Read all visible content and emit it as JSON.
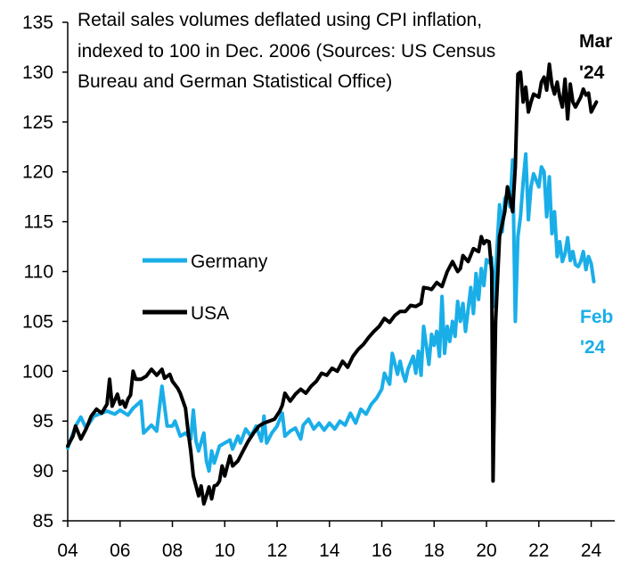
{
  "chart_data": {
    "type": "line",
    "title_lines": [
      "Retail sales volumes deflated using CPI inflation,",
      "indexed to 100 in Dec. 2006 (Sources: US Census",
      "Bureau and German Statistical Office)"
    ],
    "xlabel": "",
    "ylabel": "",
    "xlim": [
      2004,
      2024.9
    ],
    "ylim": [
      85,
      135
    ],
    "x_ticks": [
      2004,
      2006,
      2008,
      2010,
      2012,
      2014,
      2016,
      2018,
      2020,
      2022,
      2024
    ],
    "x_tick_labels": [
      "04",
      "06",
      "08",
      "10",
      "12",
      "14",
      "16",
      "18",
      "20",
      "22",
      "24"
    ],
    "y_ticks": [
      85,
      90,
      95,
      100,
      105,
      110,
      115,
      120,
      125,
      130,
      135
    ],
    "y_tick_labels": [
      "85",
      "90",
      "95",
      "100",
      "105",
      "110",
      "115",
      "120",
      "125",
      "130",
      "135"
    ],
    "grid": false,
    "legend_position": "center-left",
    "series": [
      {
        "name": "Germany",
        "color": "#1aaee8",
        "end_label": [
          "Feb",
          "'24"
        ],
        "points": [
          [
            2004.0,
            92.3
          ],
          [
            2004.3,
            94.5
          ],
          [
            2004.5,
            95.4
          ],
          [
            2004.7,
            94.3
          ],
          [
            2005.0,
            95.5
          ],
          [
            2005.3,
            95.8
          ],
          [
            2005.5,
            96.0
          ],
          [
            2005.8,
            95.7
          ],
          [
            2006.0,
            96.1
          ],
          [
            2006.3,
            95.6
          ],
          [
            2006.5,
            96.3
          ],
          [
            2006.8,
            97.0
          ],
          [
            2006.9,
            93.8
          ],
          [
            2007.2,
            94.6
          ],
          [
            2007.4,
            94.0
          ],
          [
            2007.6,
            98.5
          ],
          [
            2007.8,
            94.5
          ],
          [
            2008.0,
            94.5
          ],
          [
            2008.1,
            95.0
          ],
          [
            2008.3,
            93.5
          ],
          [
            2008.5,
            93.8
          ],
          [
            2008.7,
            93.2
          ],
          [
            2008.8,
            96.1
          ],
          [
            2008.9,
            93.0
          ],
          [
            2009.0,
            92.0
          ],
          [
            2009.2,
            93.8
          ],
          [
            2009.3,
            91.0
          ],
          [
            2009.4,
            90.0
          ],
          [
            2009.5,
            92.0
          ],
          [
            2009.6,
            90.8
          ],
          [
            2009.8,
            92.5
          ],
          [
            2010.0,
            92.8
          ],
          [
            2010.2,
            93.1
          ],
          [
            2010.3,
            92.2
          ],
          [
            2010.5,
            93.5
          ],
          [
            2010.6,
            92.8
          ],
          [
            2010.8,
            94.2
          ],
          [
            2011.0,
            93.5
          ],
          [
            2011.2,
            94.5
          ],
          [
            2011.4,
            93.0
          ],
          [
            2011.5,
            95.5
          ],
          [
            2011.6,
            92.8
          ],
          [
            2011.8,
            93.8
          ],
          [
            2012.0,
            94.5
          ],
          [
            2012.2,
            95.8
          ],
          [
            2012.3,
            93.5
          ],
          [
            2012.5,
            94.0
          ],
          [
            2012.7,
            94.3
          ],
          [
            2012.9,
            93.2
          ],
          [
            2013.0,
            94.6
          ],
          [
            2013.2,
            95.2
          ],
          [
            2013.4,
            94.2
          ],
          [
            2013.6,
            94.8
          ],
          [
            2013.8,
            94.1
          ],
          [
            2014.0,
            94.8
          ],
          [
            2014.2,
            94.2
          ],
          [
            2014.4,
            95.0
          ],
          [
            2014.6,
            94.6
          ],
          [
            2014.8,
            95.8
          ],
          [
            2015.0,
            94.8
          ],
          [
            2015.2,
            96.2
          ],
          [
            2015.4,
            95.7
          ],
          [
            2015.6,
            96.7
          ],
          [
            2015.8,
            97.3
          ],
          [
            2016.0,
            98.2
          ],
          [
            2016.1,
            99.8
          ],
          [
            2016.3,
            98.7
          ],
          [
            2016.4,
            101.8
          ],
          [
            2016.6,
            99.7
          ],
          [
            2016.7,
            101.0
          ],
          [
            2016.8,
            99.8
          ],
          [
            2016.9,
            99.0
          ],
          [
            2017.0,
            100.2
          ],
          [
            2017.2,
            101.5
          ],
          [
            2017.3,
            99.8
          ],
          [
            2017.4,
            102.0
          ],
          [
            2017.5,
            99.6
          ],
          [
            2017.6,
            104.5
          ],
          [
            2017.8,
            100.7
          ],
          [
            2017.9,
            103.7
          ],
          [
            2018.0,
            102.6
          ],
          [
            2018.1,
            104.0
          ],
          [
            2018.2,
            101.5
          ],
          [
            2018.3,
            107.5
          ],
          [
            2018.4,
            101.8
          ],
          [
            2018.5,
            104.5
          ],
          [
            2018.6,
            103.0
          ],
          [
            2018.7,
            105.0
          ],
          [
            2018.8,
            103.5
          ],
          [
            2018.9,
            107.0
          ],
          [
            2019.0,
            105.0
          ],
          [
            2019.1,
            106.8
          ],
          [
            2019.2,
            104.0
          ],
          [
            2019.4,
            108.4
          ],
          [
            2019.5,
            105.8
          ],
          [
            2019.6,
            109.8
          ],
          [
            2019.7,
            107.2
          ],
          [
            2019.8,
            110.3
          ],
          [
            2019.9,
            108.6
          ],
          [
            2020.0,
            111.2
          ],
          [
            2020.1,
            110.9
          ],
          [
            2020.2,
            111.4
          ],
          [
            2020.3,
            106.5
          ],
          [
            2020.4,
            112.3
          ],
          [
            2020.5,
            116.7
          ],
          [
            2020.6,
            114.0
          ],
          [
            2020.7,
            117.3
          ],
          [
            2020.8,
            117.8
          ],
          [
            2020.9,
            116.5
          ],
          [
            2021.0,
            121.2
          ],
          [
            2021.1,
            105.0
          ],
          [
            2021.2,
            113.5
          ],
          [
            2021.3,
            115.5
          ],
          [
            2021.4,
            119.0
          ],
          [
            2021.5,
            121.8
          ],
          [
            2021.6,
            115.2
          ],
          [
            2021.7,
            118.5
          ],
          [
            2021.8,
            119.8
          ],
          [
            2022.0,
            118.5
          ],
          [
            2022.1,
            120.5
          ],
          [
            2022.2,
            120.0
          ],
          [
            2022.3,
            115.5
          ],
          [
            2022.4,
            119.5
          ],
          [
            2022.5,
            113.8
          ],
          [
            2022.6,
            116.0
          ],
          [
            2022.7,
            111.5
          ],
          [
            2022.8,
            113.0
          ],
          [
            2022.9,
            111.0
          ],
          [
            2023.0,
            111.8
          ],
          [
            2023.1,
            113.4
          ],
          [
            2023.2,
            111.1
          ],
          [
            2023.3,
            112.0
          ],
          [
            2023.4,
            110.7
          ],
          [
            2023.5,
            110.5
          ],
          [
            2023.6,
            111.0
          ],
          [
            2023.7,
            112.0
          ],
          [
            2023.8,
            110.2
          ],
          [
            2023.9,
            111.5
          ],
          [
            2024.0,
            110.8
          ],
          [
            2024.1,
            109.0
          ]
        ]
      },
      {
        "name": "USA",
        "color": "#000000",
        "end_label": [
          "Mar",
          "'24"
        ],
        "points": [
          [
            2004.0,
            92.5
          ],
          [
            2004.2,
            93.5
          ],
          [
            2004.3,
            94.5
          ],
          [
            2004.5,
            93.2
          ],
          [
            2004.7,
            94.2
          ],
          [
            2004.9,
            95.5
          ],
          [
            2005.1,
            96.2
          ],
          [
            2005.3,
            95.8
          ],
          [
            2005.5,
            96.7
          ],
          [
            2005.6,
            99.2
          ],
          [
            2005.7,
            96.5
          ],
          [
            2005.9,
            97.7
          ],
          [
            2006.0,
            96.7
          ],
          [
            2006.1,
            97.0
          ],
          [
            2006.2,
            96.4
          ],
          [
            2006.3,
            97.2
          ],
          [
            2006.4,
            97.6
          ],
          [
            2006.5,
            100.0
          ],
          [
            2006.6,
            99.2
          ],
          [
            2006.8,
            99.2
          ],
          [
            2007.0,
            99.5
          ],
          [
            2007.2,
            100.2
          ],
          [
            2007.4,
            99.6
          ],
          [
            2007.6,
            100.2
          ],
          [
            2007.7,
            99.3
          ],
          [
            2007.9,
            99.7
          ],
          [
            2008.0,
            99.0
          ],
          [
            2008.2,
            98.3
          ],
          [
            2008.3,
            97.8
          ],
          [
            2008.5,
            96.3
          ],
          [
            2008.6,
            94.0
          ],
          [
            2008.7,
            92.0
          ],
          [
            2008.8,
            89.5
          ],
          [
            2008.9,
            88.5
          ],
          [
            2009.0,
            87.5
          ],
          [
            2009.1,
            88.5
          ],
          [
            2009.2,
            86.7
          ],
          [
            2009.3,
            87.5
          ],
          [
            2009.4,
            88.4
          ],
          [
            2009.5,
            87.2
          ],
          [
            2009.6,
            88.5
          ],
          [
            2009.7,
            88.6
          ],
          [
            2009.8,
            89.0
          ],
          [
            2009.9,
            90.5
          ],
          [
            2010.0,
            89.5
          ],
          [
            2010.2,
            91.5
          ],
          [
            2010.3,
            90.5
          ],
          [
            2010.5,
            91.0
          ],
          [
            2010.7,
            92.0
          ],
          [
            2010.9,
            93.0
          ],
          [
            2011.1,
            93.8
          ],
          [
            2011.3,
            94.5
          ],
          [
            2011.5,
            94.8
          ],
          [
            2011.7,
            95.0
          ],
          [
            2011.9,
            95.2
          ],
          [
            2012.1,
            96.0
          ],
          [
            2012.2,
            96.6
          ],
          [
            2012.3,
            97.8
          ],
          [
            2012.5,
            97.0
          ],
          [
            2012.7,
            97.7
          ],
          [
            2012.9,
            98.2
          ],
          [
            2013.1,
            97.8
          ],
          [
            2013.3,
            98.5
          ],
          [
            2013.5,
            99.0
          ],
          [
            2013.7,
            99.8
          ],
          [
            2013.9,
            99.6
          ],
          [
            2014.1,
            100.3
          ],
          [
            2014.3,
            100.0
          ],
          [
            2014.5,
            101.0
          ],
          [
            2014.7,
            100.4
          ],
          [
            2014.9,
            101.5
          ],
          [
            2015.1,
            102.2
          ],
          [
            2015.3,
            102.7
          ],
          [
            2015.5,
            103.4
          ],
          [
            2015.7,
            104.0
          ],
          [
            2015.9,
            104.5
          ],
          [
            2016.1,
            105.3
          ],
          [
            2016.3,
            104.9
          ],
          [
            2016.5,
            105.6
          ],
          [
            2016.7,
            106.0
          ],
          [
            2016.9,
            106.0
          ],
          [
            2017.1,
            106.6
          ],
          [
            2017.3,
            106.5
          ],
          [
            2017.5,
            106.8
          ],
          [
            2017.6,
            108.4
          ],
          [
            2017.8,
            108.3
          ],
          [
            2017.9,
            108.2
          ],
          [
            2018.1,
            108.9
          ],
          [
            2018.3,
            108.5
          ],
          [
            2018.5,
            110.0
          ],
          [
            2018.7,
            111.0
          ],
          [
            2018.9,
            110.0
          ],
          [
            2019.0,
            110.3
          ],
          [
            2019.1,
            111.6
          ],
          [
            2019.3,
            111.0
          ],
          [
            2019.5,
            112.3
          ],
          [
            2019.7,
            112.0
          ],
          [
            2019.8,
            113.5
          ],
          [
            2019.9,
            112.8
          ],
          [
            2020.0,
            113.1
          ],
          [
            2020.1,
            113.0
          ],
          [
            2020.2,
            110.0
          ],
          [
            2020.25,
            89.0
          ],
          [
            2020.35,
            105.0
          ],
          [
            2020.5,
            113.5
          ],
          [
            2020.7,
            116.0
          ],
          [
            2020.8,
            118.5
          ],
          [
            2021.0,
            116.0
          ],
          [
            2021.1,
            120.5
          ],
          [
            2021.2,
            129.8
          ],
          [
            2021.3,
            130.0
          ],
          [
            2021.4,
            127.0
          ],
          [
            2021.5,
            128.5
          ],
          [
            2021.6,
            126.0
          ],
          [
            2021.7,
            127.0
          ],
          [
            2021.8,
            127.8
          ],
          [
            2022.0,
            127.5
          ],
          [
            2022.1,
            129.0
          ],
          [
            2022.2,
            129.5
          ],
          [
            2022.3,
            128.2
          ],
          [
            2022.4,
            130.8
          ],
          [
            2022.5,
            128.7
          ],
          [
            2022.6,
            127.8
          ],
          [
            2022.7,
            129.0
          ],
          [
            2022.8,
            127.5
          ],
          [
            2022.9,
            126.5
          ],
          [
            2023.0,
            129.3
          ],
          [
            2023.1,
            125.3
          ],
          [
            2023.2,
            128.8
          ],
          [
            2023.3,
            127.0
          ],
          [
            2023.4,
            126.5
          ],
          [
            2023.5,
            127.0
          ],
          [
            2023.6,
            127.5
          ],
          [
            2023.7,
            128.3
          ],
          [
            2023.8,
            127.7
          ],
          [
            2023.9,
            127.9
          ],
          [
            2024.0,
            126.0
          ],
          [
            2024.1,
            126.5
          ],
          [
            2024.2,
            127.0
          ]
        ]
      }
    ]
  }
}
